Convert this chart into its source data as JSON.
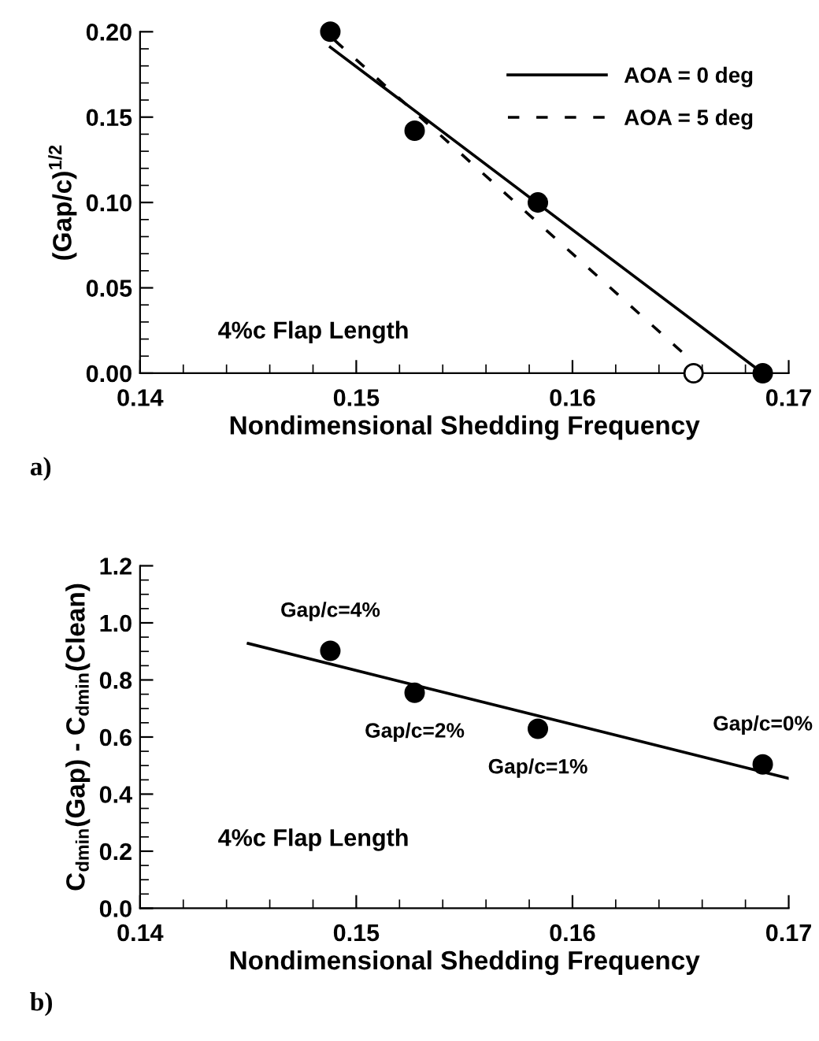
{
  "chart_data": [
    {
      "type": "line",
      "xlabel": "Nondimensional Shedding Frequency",
      "ylabel": "(Gap/c)$^{1/2}$",
      "xlim": [
        0.14,
        0.17
      ],
      "xticks": [
        0.14,
        0.15,
        0.16,
        0.17
      ],
      "ylim": [
        0,
        0.2
      ],
      "yticks": [
        {
          "value": 0,
          "label": "0.00"
        },
        0.05,
        {
          "value": 0.1,
          "label": "0.10"
        },
        0.15,
        {
          "value": 0.2,
          "label": "0.20"
        }
      ],
      "grid": false,
      "legend": "top right",
      "series": [
        {
          "name": "AOA = 0 deg",
          "line_style": "solid",
          "color": "#000000",
          "x": [
            0.1488,
            0.1688
          ],
          "values": [
            0.191,
            0.0
          ]
        },
        {
          "name": "AOA = 5 deg",
          "line_style": "dashed",
          "color": "#000000",
          "x": [
            0.149,
            0.1651
          ],
          "values": [
            0.195,
            0.012
          ]
        },
        {
          "type": "scatter",
          "marker": "circle",
          "color": "#000000",
          "x": [
            0.1488,
            0.1527,
            0.1584,
            0.1688
          ],
          "values": [
            0.2,
            0.142,
            0.1,
            0.0
          ]
        },
        {
          "type": "scatter",
          "marker": "circle",
          "color": "#ffffff",
          "x": [
            0.1656
          ],
          "values": [
            0.0
          ]
        }
      ],
      "annotations": [
        "4%c Flap Length",
        "a)"
      ]
    },
    {
      "type": "line",
      "xlabel": "Nondimensional Shedding Frequency",
      "ylabel": "C$_{dmin}$(Gap) - C$_{dmin}$(Clean)",
      "xlim": [
        0.14,
        0.17
      ],
      "xticks": [
        0.14,
        0.15,
        0.16,
        0.17
      ],
      "ylim": [
        0,
        1.2
      ],
      "yticks": [
        {
          "value": 0,
          "label": "0.0"
        },
        0.2,
        0.4,
        0.6,
        0.8,
        {
          "value": 1.0,
          "label": "1.0"
        },
        1.2
      ],
      "grid": false,
      "legend": false,
      "series": [
        {
          "line_style": "solid",
          "color": "#000000",
          "x": [
            0.145,
            0.17
          ],
          "values": [
            0.928,
            0.455
          ]
        },
        {
          "type": "scatter",
          "marker": "circle",
          "color": "#000000",
          "x": [
            0.1488,
            0.1527,
            0.1584,
            0.1688
          ],
          "values": [
            0.902,
            0.755,
            0.629,
            0.504
          ]
        }
      ],
      "annotations": [
        "4%c Flap Length",
        "b)",
        {
          "text": "Gap/c=4%",
          "x": 0.1488,
          "y": 0.902
        },
        {
          "text": "Gap/c=2%",
          "x": 0.1527,
          "y": 0.755
        },
        {
          "text": "Gap/c=1%",
          "x": 0.1584,
          "y": 0.629
        },
        {
          "text": "Gap/c=0%",
          "x": 0.1688,
          "y": 0.504
        }
      ]
    }
  ]
}
